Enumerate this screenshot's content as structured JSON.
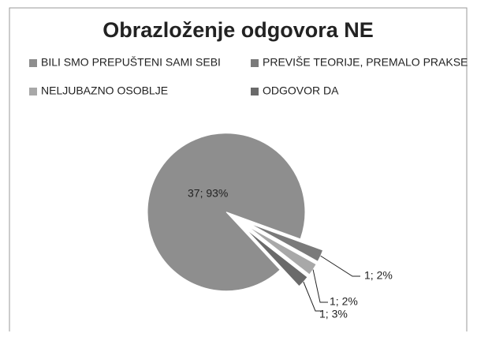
{
  "chart_data": {
    "type": "pie",
    "title": "Obrazloženje odgovora NE",
    "categories": [
      "BILI SMO PREPUŠTENI SAMI SEBI",
      "PREVIŠE TEORIJE, PREMALO PRAKSE",
      "NELJUBAZNO  OSOBLJE",
      "ODGOVOR DA"
    ],
    "values": [
      37,
      1,
      1,
      1
    ],
    "value_labels": [
      "37; 93%",
      "1; 2%",
      "1; 2%",
      "1; 3%"
    ],
    "colors": [
      "#8e8e8e",
      "#7a7a7a",
      "#a8a8a8",
      "#6a6a6a"
    ],
    "legend": "top"
  }
}
